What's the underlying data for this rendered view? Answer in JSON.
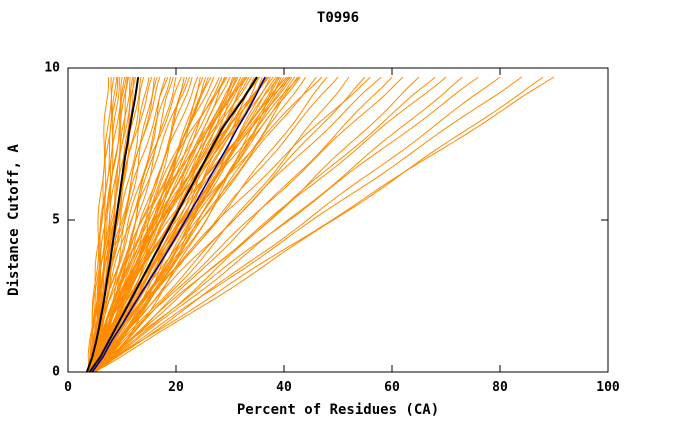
{
  "chart_data": {
    "type": "line",
    "title": "T0996",
    "xlabel": "Percent of Residues (CA)",
    "ylabel": "Distance Cutoff, A",
    "xlim": [
      0,
      100
    ],
    "ylim": [
      0,
      10
    ],
    "xticks": [
      0,
      20,
      40,
      60,
      80,
      100
    ],
    "yticks": [
      0,
      5,
      10
    ],
    "grid": false,
    "legend": "none",
    "curve_top_y": 9.7,
    "colors": {
      "ensemble": "#ff8c00",
      "highlight_black": "#000000",
      "highlight_navy": "#000090",
      "frame": "#000000",
      "background": "#ffffff"
    },
    "description": "Ensemble of model accuracy curves for CASP target T0996: percent of CA residues (x) under a given distance cutoff in Angstroms (y). Orange = all predictions, black and navy = highlighted models. Each orange curve encoded as [x_at_bottom, x_at_top, shape_exponent].",
    "series": {
      "black_curve_1": [
        [
          3.5,
          0
        ],
        [
          4.5,
          0.5
        ],
        [
          5.2,
          1
        ],
        [
          5.8,
          1.5
        ],
        [
          6.3,
          2
        ],
        [
          6.8,
          2.5
        ],
        [
          7.2,
          3
        ],
        [
          7.7,
          3.5
        ],
        [
          8.1,
          4
        ],
        [
          8.5,
          4.5
        ],
        [
          8.9,
          5
        ],
        [
          9.3,
          5.5
        ],
        [
          9.7,
          6
        ],
        [
          10.1,
          6.5
        ],
        [
          10.5,
          7
        ],
        [
          11.0,
          7.5
        ],
        [
          11.4,
          8
        ],
        [
          11.9,
          8.5
        ],
        [
          12.4,
          9
        ],
        [
          13.0,
          9.7
        ]
      ],
      "black_curve_2": [
        [
          4,
          0
        ],
        [
          6,
          0.5
        ],
        [
          7.5,
          1
        ],
        [
          9,
          1.5
        ],
        [
          10.5,
          2
        ],
        [
          12,
          2.5
        ],
        [
          13.5,
          3
        ],
        [
          15,
          3.5
        ],
        [
          16.5,
          4
        ],
        [
          18,
          4.5
        ],
        [
          19.5,
          5
        ],
        [
          21,
          5.5
        ],
        [
          22.5,
          6
        ],
        [
          24,
          6.5
        ],
        [
          25.5,
          7
        ],
        [
          27,
          7.5
        ],
        [
          28.5,
          8
        ],
        [
          30.5,
          8.5
        ],
        [
          32.5,
          9
        ],
        [
          35,
          9.7
        ]
      ],
      "navy_curve": [
        [
          4.5,
          0
        ],
        [
          6.5,
          0.5
        ],
        [
          8,
          1
        ],
        [
          9.8,
          1.5
        ],
        [
          11.5,
          2
        ],
        [
          13.2,
          2.5
        ],
        [
          15,
          3
        ],
        [
          16.8,
          3.5
        ],
        [
          18.5,
          4
        ],
        [
          20.2,
          4.5
        ],
        [
          21.8,
          5
        ],
        [
          23.4,
          5.5
        ],
        [
          25,
          6
        ],
        [
          26.6,
          6.5
        ],
        [
          28.2,
          7
        ],
        [
          29.8,
          7.5
        ],
        [
          31.3,
          8
        ],
        [
          33,
          8.5
        ],
        [
          34.5,
          9
        ],
        [
          36.5,
          9.7
        ]
      ]
    },
    "orange_curves": [
      [
        4.0,
        7.5,
        1.0
      ],
      [
        4.2,
        8,
        0.9
      ],
      [
        3.8,
        8.5,
        1.1
      ],
      [
        4.5,
        9,
        1.0
      ],
      [
        4.0,
        9.5,
        0.85
      ],
      [
        4.3,
        10,
        1.15
      ],
      [
        3.9,
        10.5,
        0.95
      ],
      [
        4.6,
        11,
        1.05
      ],
      [
        4.1,
        11.5,
        0.9
      ],
      [
        4.4,
        12,
        1.1
      ],
      [
        4.0,
        12.5,
        1.0
      ],
      [
        4.7,
        13,
        0.92
      ],
      [
        4.2,
        13.5,
        1.08
      ],
      [
        3.7,
        14,
        0.98
      ],
      [
        4.5,
        10.8,
        1.3
      ],
      [
        4.1,
        9.2,
        1.25
      ],
      [
        4.3,
        12.2,
        0.75
      ],
      [
        3.9,
        11.2,
        0.8
      ],
      [
        4.2,
        15,
        1.0
      ],
      [
        4.5,
        16,
        0.9
      ],
      [
        4.0,
        17,
        1.2
      ],
      [
        4.8,
        18,
        0.85
      ],
      [
        4.3,
        19,
        1.1
      ],
      [
        4.6,
        20,
        0.95
      ],
      [
        4.1,
        21,
        1.25
      ],
      [
        4.9,
        22,
        0.9
      ],
      [
        4.4,
        23,
        1.05
      ],
      [
        4.7,
        24,
        1.15
      ],
      [
        4.2,
        25,
        0.88
      ],
      [
        5.0,
        26,
        1.0
      ],
      [
        4.5,
        27,
        1.2
      ],
      [
        4.0,
        15.5,
        1.4
      ],
      [
        4.6,
        18.5,
        1.35
      ],
      [
        4.3,
        21.5,
        0.7
      ],
      [
        4.8,
        24.5,
        0.78
      ],
      [
        4.1,
        16.5,
        1.1
      ],
      [
        4.9,
        19.5,
        1.0
      ],
      [
        4.4,
        22.5,
        1.3
      ],
      [
        4.6,
        25.5,
        0.92
      ],
      [
        4.2,
        26.5,
        1.18
      ],
      [
        4.5,
        28,
        1.0
      ],
      [
        4.8,
        28.5,
        1.15
      ],
      [
        4.2,
        29,
        0.9
      ],
      [
        5.0,
        29.5,
        1.3
      ],
      [
        4.4,
        30,
        1.05
      ],
      [
        4.7,
        30.5,
        0.85
      ],
      [
        4.3,
        31,
        1.2
      ],
      [
        5.1,
        31.5,
        0.95
      ],
      [
        4.6,
        32,
        1.1
      ],
      [
        4.9,
        32.5,
        1.35
      ],
      [
        4.2,
        33,
        0.88
      ],
      [
        5.2,
        33.5,
        1.0
      ],
      [
        4.5,
        34,
        1.25
      ],
      [
        4.8,
        34.5,
        0.92
      ],
      [
        4.3,
        35,
        1.12
      ],
      [
        5.0,
        35.5,
        1.4
      ],
      [
        4.6,
        36,
        0.8
      ],
      [
        4.9,
        36.5,
        1.05
      ],
      [
        4.4,
        37,
        1.22
      ],
      [
        5.1,
        37.5,
        0.9
      ],
      [
        4.7,
        38,
        1.3
      ],
      [
        4.3,
        38.5,
        1.0
      ],
      [
        5.2,
        39,
        1.15
      ],
      [
        4.5,
        39.5,
        0.85
      ],
      [
        4.8,
        40,
        1.08
      ],
      [
        4.4,
        40.5,
        1.28
      ],
      [
        5.0,
        41,
        0.95
      ],
      [
        4.6,
        41.5,
        1.18
      ],
      [
        4.9,
        42,
        1.02
      ],
      [
        4.3,
        42.5,
        0.9
      ],
      [
        5.1,
        43,
        1.1
      ],
      [
        4.5,
        29.2,
        1.45
      ],
      [
        4.8,
        31.2,
        0.72
      ],
      [
        4.2,
        33.2,
        1.5
      ],
      [
        5.0,
        35.2,
        0.75
      ],
      [
        4.6,
        37.2,
        1.42
      ],
      [
        4.9,
        39.2,
        0.78
      ],
      [
        4.4,
        41.2,
        1.35
      ],
      [
        4.7,
        30.8,
        1.0
      ],
      [
        4.3,
        32.8,
        1.2
      ],
      [
        5.1,
        34.8,
        0.88
      ],
      [
        4.5,
        36.8,
        1.3
      ],
      [
        4.8,
        38.8,
        0.95
      ],
      [
        4.2,
        40.8,
        1.12
      ],
      [
        4.9,
        42.8,
        1.25
      ],
      [
        4.6,
        44,
        1.0
      ],
      [
        4.9,
        46,
        1.1
      ],
      [
        4.3,
        48,
        0.95
      ],
      [
        5.0,
        50,
        1.05
      ],
      [
        4.5,
        52,
        0.9
      ],
      [
        4.8,
        55,
        1.0
      ],
      [
        4.2,
        58,
        1.08
      ],
      [
        5.1,
        60,
        0.97
      ],
      [
        4.6,
        62,
        1.03
      ],
      [
        4.9,
        65,
        0.93
      ],
      [
        4.4,
        68,
        1.0
      ],
      [
        5.0,
        70,
        1.06
      ],
      [
        4.7,
        73,
        0.96
      ],
      [
        4.3,
        76,
        1.02
      ],
      [
        5.1,
        80,
        0.98
      ],
      [
        4.5,
        84,
        1.0
      ],
      [
        4.8,
        88,
        0.95
      ],
      [
        4.6,
        90,
        1.0
      ],
      [
        4.4,
        47,
        1.3
      ],
      [
        4.9,
        56,
        1.2
      ]
    ]
  }
}
